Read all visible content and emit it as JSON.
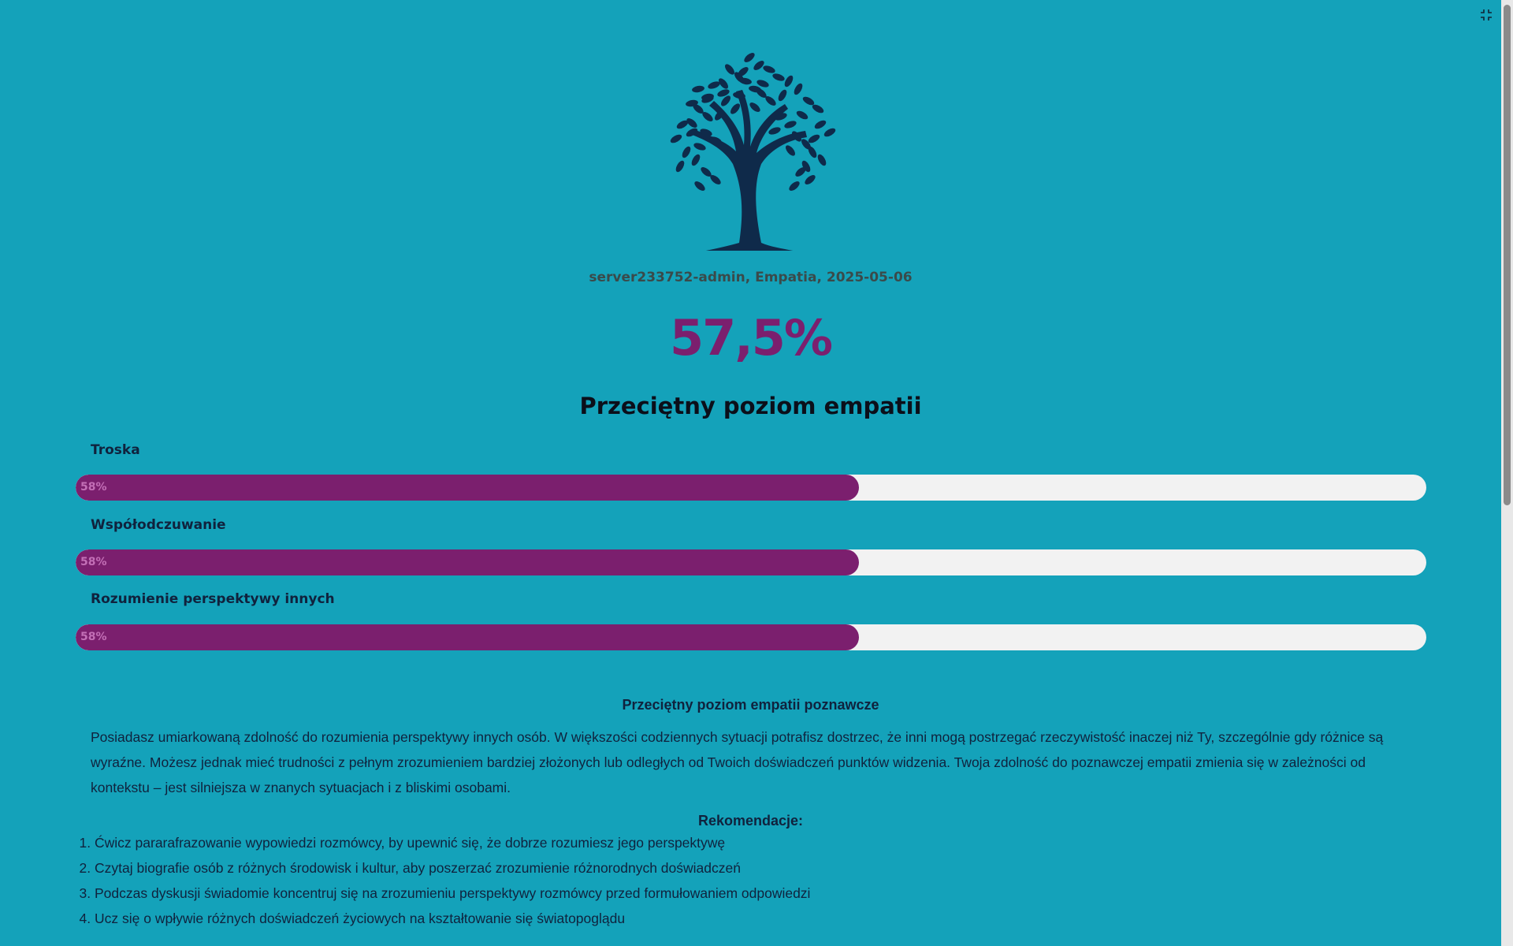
{
  "header": {
    "meta": "server233752-admin, Empatia, 2025-05-06",
    "score": "57,5%",
    "level": "Przeciętny poziom empatii"
  },
  "bars": [
    {
      "label": "Troska",
      "value": 58,
      "value_label": "58%"
    },
    {
      "label": "Współodczuwanie",
      "value": 58,
      "value_label": "58%"
    },
    {
      "label": "Rozumienie perspektywy innych",
      "value": 58,
      "value_label": "58%"
    }
  ],
  "section": {
    "title": "Przeciętny poziom empatii poznawcze",
    "paragraph": "Posiadasz umiarkowaną zdolność do rozumienia perspektywy innych osób. W większości codziennych sytuacji potrafisz dostrzec, że inni mogą postrzegać rzeczywistość inaczej niż Ty, szczególnie gdy różnice są wyraźne. Możesz jednak mieć trudności z pełnym zrozumieniem bardziej złożonych lub odległych od Twoich doświadczeń punktów widzenia. Twoja zdolność do poznawczej empatii zmienia się w zależności od kontekstu – jest silniejsza w znanych sytuacjach i z bliskimi osobami.",
    "recommendations_title": "Rekomendacje:",
    "recommendations": [
      "Ćwicz pararafrazowanie wypowiedzi rozmówcy, by upewnić się, że dobrze rozumiesz jego perspektywę",
      "Czytaj biografie osób z różnych środowisk i kultur, aby poszerzać zrozumienie różnorodnych doświadczeń",
      "Podczas dyskusji świadomie koncentruj się na zrozumieniu perspektywy rozmówcy przed formułowaniem odpowiedzi",
      "Ucz się o wpływie różnych doświadczeń życiowych na kształtowanie się światopoglądu"
    ]
  }
}
